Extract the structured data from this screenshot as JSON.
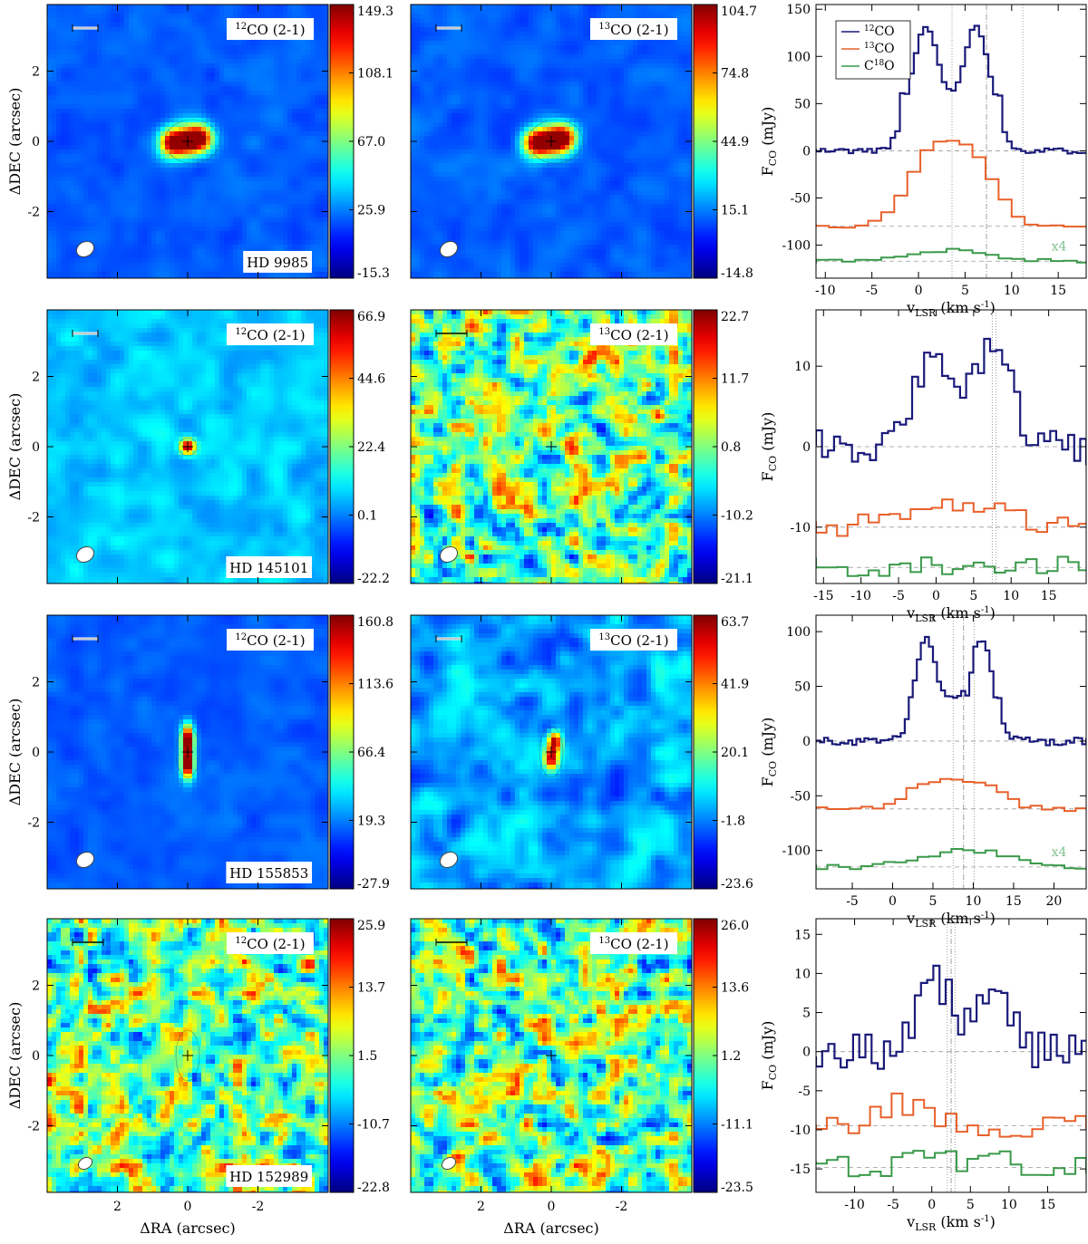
{
  "figure": {
    "ra_label": "ΔRA  (arcsec)",
    "dec_label": "ΔDEC  (arcsec)",
    "flux_label": "F",
    "flux_sub": "CO",
    "flux_unit": " (mJy)",
    "vel_label": "v",
    "vel_sub": "LSR",
    "vel_unit": " (km s",
    "vel_unit_sup": "-1",
    "vel_unit_end": ")",
    "line12": "CO (2-1)",
    "line12_sup": "12",
    "line13": "CO (2-1)",
    "line13_sup": "13",
    "colors": {
      "co12": "#1a1a7a",
      "co13": "#e8602a",
      "c18o": "#3a9a4a",
      "x4": "#7fbf8f"
    }
  },
  "chart_data": {
    "type": "figure-grid",
    "map_axes": {
      "ra_ticks": [
        "2",
        "0",
        "-2"
      ],
      "dec_ticks": [
        "2",
        "0",
        "-2"
      ],
      "range_arcsec": [
        4,
        -4
      ]
    },
    "legend": {
      "co12": "CO",
      "co12_sup": "12",
      "co13": "CO",
      "co13_sup": "13",
      "c18o_a": "C",
      "c18o_sup": "18",
      "c18o_b": "O"
    },
    "rows": [
      {
        "star": "HD 9985",
        "map12": {
          "cbar": [
            "149.3",
            "108.1",
            "67.0",
            "25.9",
            "-15.3"
          ],
          "shape": "double",
          "bg": "blue"
        },
        "map13": {
          "cbar": [
            "104.7",
            "74.8",
            "44.9",
            "15.1",
            "-14.8"
          ],
          "shape": "double",
          "bg": "blue"
        },
        "spectrum": {
          "xlim": [
            -11,
            18
          ],
          "ylim": [
            -135,
            155
          ],
          "xticks": [
            -10,
            -5,
            0,
            5,
            10,
            15
          ],
          "yticks": [
            150,
            100,
            50,
            0,
            -50,
            -100
          ],
          "vlines": [
            3.6,
            7.3,
            11.2
          ],
          "offsets": [
            0,
            -80,
            -117
          ],
          "x4": "x4",
          "legend": true,
          "co12_shape": {
            "amp": 130,
            "centers": [
              0.8,
              6.2
            ],
            "width": 1.6,
            "wide": 2.6
          },
          "co13_shape": {
            "amp": 70,
            "centers": [
              1.2,
              5.8
            ],
            "width": 2.5
          },
          "c18o_shape": {
            "amp": 12,
            "centers": [
              3.5
            ],
            "width": 4
          },
          "noise": 3
        }
      },
      {
        "star": "HD 145101",
        "map12": {
          "cbar": [
            "66.9",
            "44.6",
            "22.4",
            "0.1",
            "-22.2"
          ],
          "shape": "point",
          "bg": "cyanblue"
        },
        "map13": {
          "cbar": [
            "22.7",
            "11.7",
            "0.8",
            "-10.2",
            "-21.1"
          ],
          "shape": "noise",
          "bg": "noisy"
        },
        "spectrum": {
          "xlim": [
            -16,
            20
          ],
          "ylim": [
            -17,
            17
          ],
          "xticks": [
            -15,
            -10,
            -5,
            0,
            5,
            10,
            15
          ],
          "yticks": [
            10,
            0,
            -10
          ],
          "vlines": [
            7.5,
            8.0
          ],
          "offsets": [
            0,
            -10,
            -15
          ],
          "legend": false,
          "co12_shape": {
            "amp": 12,
            "centers": [
              -0.3,
              7.5
            ],
            "width": 2.5,
            "wide": 3
          },
          "co13_shape": {
            "amp": 2.5,
            "centers": [
              3
            ],
            "width": 7
          },
          "c18o_shape": {
            "amp": 0.3,
            "centers": [
              3
            ],
            "width": 5
          },
          "noise": 2.2
        }
      },
      {
        "star": "HD 155853",
        "map12": {
          "cbar": [
            "160.8",
            "113.6",
            "66.4",
            "19.3",
            "-27.9"
          ],
          "shape": "vertical",
          "bg": "blue"
        },
        "map13": {
          "cbar": [
            "63.7",
            "41.9",
            "20.1",
            "-1.8",
            "-23.6"
          ],
          "shape": "vertical-small",
          "bg": "mottled"
        },
        "spectrum": {
          "xlim": [
            -9.5,
            24
          ],
          "ylim": [
            -135,
            115
          ],
          "xticks": [
            -5,
            0,
            5,
            10,
            15,
            20
          ],
          "yticks": [
            100,
            50,
            0,
            -50,
            -100
          ],
          "vlines": [
            7.5,
            8.8,
            10.1
          ],
          "offsets": [
            0,
            -62,
            -115
          ],
          "x4": "x4",
          "legend": false,
          "co12_shape": {
            "amp": 95,
            "centers": [
              4.3,
              11
            ],
            "width": 1.4,
            "wide": 2.4
          },
          "co13_shape": {
            "amp": 22,
            "centers": [
              4.5,
              10.5
            ],
            "width": 3
          },
          "c18o_shape": {
            "amp": 15,
            "centers": [
              9.5
            ],
            "width": 5
          },
          "noise": 4
        }
      },
      {
        "star": "HD 152989",
        "map12": {
          "cbar": [
            "25.9",
            "13.7",
            "1.5",
            "-10.7",
            "-22.8"
          ],
          "shape": "faint-vertical",
          "bg": "noisy"
        },
        "map13": {
          "cbar": [
            "26.0",
            "13.6",
            "1.2",
            "-11.1",
            "-23.5"
          ],
          "shape": "noise",
          "bg": "noisy"
        },
        "spectrum": {
          "xlim": [
            -15,
            20
          ],
          "ylim": [
            -18,
            17
          ],
          "xticks": [
            -10,
            -5,
            0,
            5,
            10,
            15
          ],
          "yticks": [
            15,
            10,
            5,
            0,
            -5,
            -10,
            -15
          ],
          "vlines": [
            2.0,
            2.5,
            3.0
          ],
          "offsets": [
            0,
            -9.5,
            -14.8
          ],
          "legend": false,
          "co12_shape": {
            "amp": 9,
            "centers": [
              0.5,
              8
            ],
            "width": 2.2,
            "wide": 3
          },
          "co13_shape": {
            "amp": 3,
            "centers": [
              -4
            ],
            "width": 3
          },
          "c18o_shape": {
            "amp": 1.0,
            "centers": [
              3
            ],
            "width": 6
          },
          "noise": 2.5
        }
      }
    ]
  }
}
